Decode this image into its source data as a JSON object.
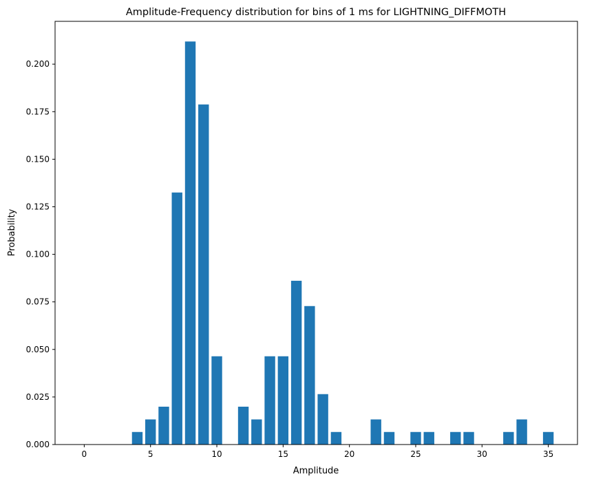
{
  "chart_data": {
    "type": "bar",
    "title": "Amplitude-Frequency distribution for bins of 1 ms for LIGHTNING_DIFFMOTH",
    "xlabel": "Amplitude",
    "ylabel": "Probability",
    "xlim": [
      -2.2,
      37.2
    ],
    "ylim": [
      0.0,
      0.2225
    ],
    "xticks": [
      0,
      5,
      10,
      15,
      20,
      25,
      30,
      35
    ],
    "xtick_labels": [
      "0",
      "5",
      "10",
      "15",
      "20",
      "25",
      "30",
      "35"
    ],
    "yticks": [
      0.0,
      0.025,
      0.05,
      0.075,
      0.1,
      0.125,
      0.15,
      0.175,
      0.2
    ],
    "ytick_labels": [
      "0.000",
      "0.025",
      "0.050",
      "0.075",
      "0.100",
      "0.125",
      "0.150",
      "0.175",
      "0.200"
    ],
    "bar_width": 0.8,
    "bar_color": "#1f77b4",
    "grid": false,
    "points": [
      {
        "x": 4,
        "y": 0.0066
      },
      {
        "x": 5,
        "y": 0.0132
      },
      {
        "x": 6,
        "y": 0.0199
      },
      {
        "x": 7,
        "y": 0.1325
      },
      {
        "x": 8,
        "y": 0.2119
      },
      {
        "x": 9,
        "y": 0.1788
      },
      {
        "x": 10,
        "y": 0.0464
      },
      {
        "x": 12,
        "y": 0.0199
      },
      {
        "x": 13,
        "y": 0.0132
      },
      {
        "x": 14,
        "y": 0.0464
      },
      {
        "x": 15,
        "y": 0.0464
      },
      {
        "x": 16,
        "y": 0.0861
      },
      {
        "x": 17,
        "y": 0.0728
      },
      {
        "x": 18,
        "y": 0.0265
      },
      {
        "x": 19,
        "y": 0.0066
      },
      {
        "x": 22,
        "y": 0.0132
      },
      {
        "x": 23,
        "y": 0.0066
      },
      {
        "x": 25,
        "y": 0.0066
      },
      {
        "x": 26,
        "y": 0.0066
      },
      {
        "x": 28,
        "y": 0.0066
      },
      {
        "x": 29,
        "y": 0.0066
      },
      {
        "x": 32,
        "y": 0.0066
      },
      {
        "x": 33,
        "y": 0.0132
      },
      {
        "x": 35,
        "y": 0.0066
      }
    ]
  }
}
